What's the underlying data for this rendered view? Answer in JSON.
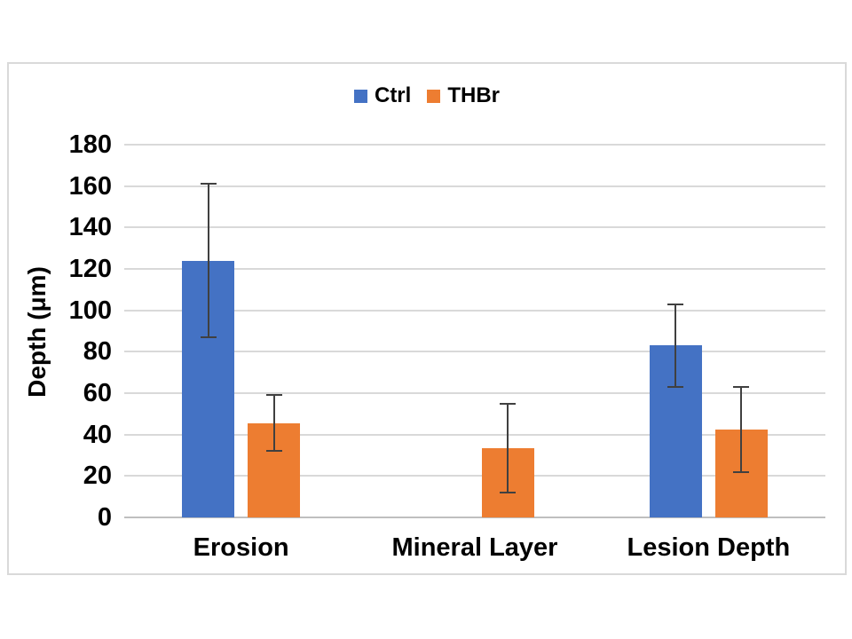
{
  "chart_data": {
    "type": "bar",
    "title": "",
    "xlabel": "",
    "ylabel": "Depth (μm)",
    "ylim": [
      0,
      180
    ],
    "ytick_step": 20,
    "grid": true,
    "legend_position": "top-center",
    "categories": [
      "Erosion",
      "Mineral Layer",
      "Lesion Depth"
    ],
    "series": [
      {
        "name": "Ctrl",
        "color": "#4472C4",
        "values": [
          124,
          null,
          83
        ],
        "errors": [
          37,
          null,
          20
        ]
      },
      {
        "name": "THBr",
        "color": "#ED7D31",
        "values": [
          45.5,
          33.5,
          42.5
        ],
        "errors": [
          13.5,
          21.5,
          20.5
        ]
      }
    ],
    "error_bar_color": "#404040"
  },
  "colors": {
    "frame_border": "#D9D9D9",
    "gridline": "#D9D9D9",
    "zero_axis_line": "#BFBFBF",
    "text": "#000000",
    "background": "#FFFFFF"
  }
}
